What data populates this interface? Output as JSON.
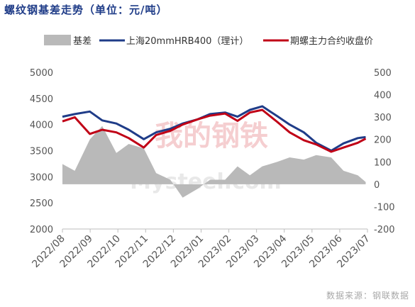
{
  "title": "螺纹钢基差走势（单位：元/吨）",
  "source": "数据来源：钢联数据",
  "watermark": {
    "text": "Mysteel.com",
    "cn_text": "我的钢铁"
  },
  "colors": {
    "basis": "#b9b9b9",
    "spot": "#1f3c88",
    "futures": "#c00016",
    "axis": "#555555",
    "title": "#1f3c88"
  },
  "chart_data": {
    "type": "line",
    "title": "螺纹钢基差走势（单位：元/吨）",
    "legend_position": "top",
    "grid": false,
    "x_tick_labels": [
      "2022/08",
      "2022/09",
      "2022/10",
      "2022/11",
      "2022/12",
      "2023/01",
      "2023/02",
      "2023/03",
      "2023/04",
      "2023/05",
      "2023/06",
      "2023/07"
    ],
    "y_left": {
      "ticks": [
        2000,
        2500,
        3000,
        3500,
        4000,
        4500,
        5000
      ],
      "lim": [
        2000,
        5000
      ]
    },
    "y_right": {
      "ticks": [
        -200,
        -100,
        0,
        100,
        200,
        300,
        400,
        500
      ],
      "lim": [
        -200,
        500
      ]
    },
    "x": [
      "2022/08/01",
      "2022/08/15",
      "2022/09/01",
      "2022/09/15",
      "2022/10/01",
      "2022/10/15",
      "2022/11/01",
      "2022/11/15",
      "2022/12/01",
      "2022/12/15",
      "2023/01/01",
      "2023/01/15",
      "2023/02/01",
      "2023/02/15",
      "2023/03/01",
      "2023/03/15",
      "2023/04/01",
      "2023/04/15",
      "2023/05/01",
      "2023/05/15",
      "2023/06/01",
      "2023/06/15",
      "2023/07/01",
      "2023/07/10"
    ],
    "series": [
      {
        "name": "基差",
        "axis": "right",
        "style": "area",
        "values": [
          90,
          60,
          200,
          260,
          140,
          180,
          160,
          50,
          20,
          -60,
          -20,
          20,
          20,
          80,
          40,
          80,
          100,
          120,
          110,
          130,
          120,
          60,
          40,
          10
        ]
      },
      {
        "name": "上海20mmHRB400（理计）",
        "axis": "left",
        "style": "line",
        "values": [
          4150,
          4200,
          4250,
          4080,
          4020,
          3900,
          3720,
          3850,
          3920,
          4020,
          4100,
          4200,
          4230,
          4150,
          4280,
          4350,
          4160,
          4000,
          3850,
          3650,
          3500,
          3640,
          3740,
          3760
        ]
      },
      {
        "name": "期螺主力合约收盘价",
        "axis": "left",
        "style": "line",
        "values": [
          4060,
          4140,
          3820,
          3900,
          3850,
          3740,
          3560,
          3800,
          3880,
          4000,
          4100,
          4170,
          4210,
          4070,
          4230,
          4280,
          4050,
          3850,
          3700,
          3620,
          3480,
          3560,
          3650,
          3730
        ]
      }
    ]
  }
}
